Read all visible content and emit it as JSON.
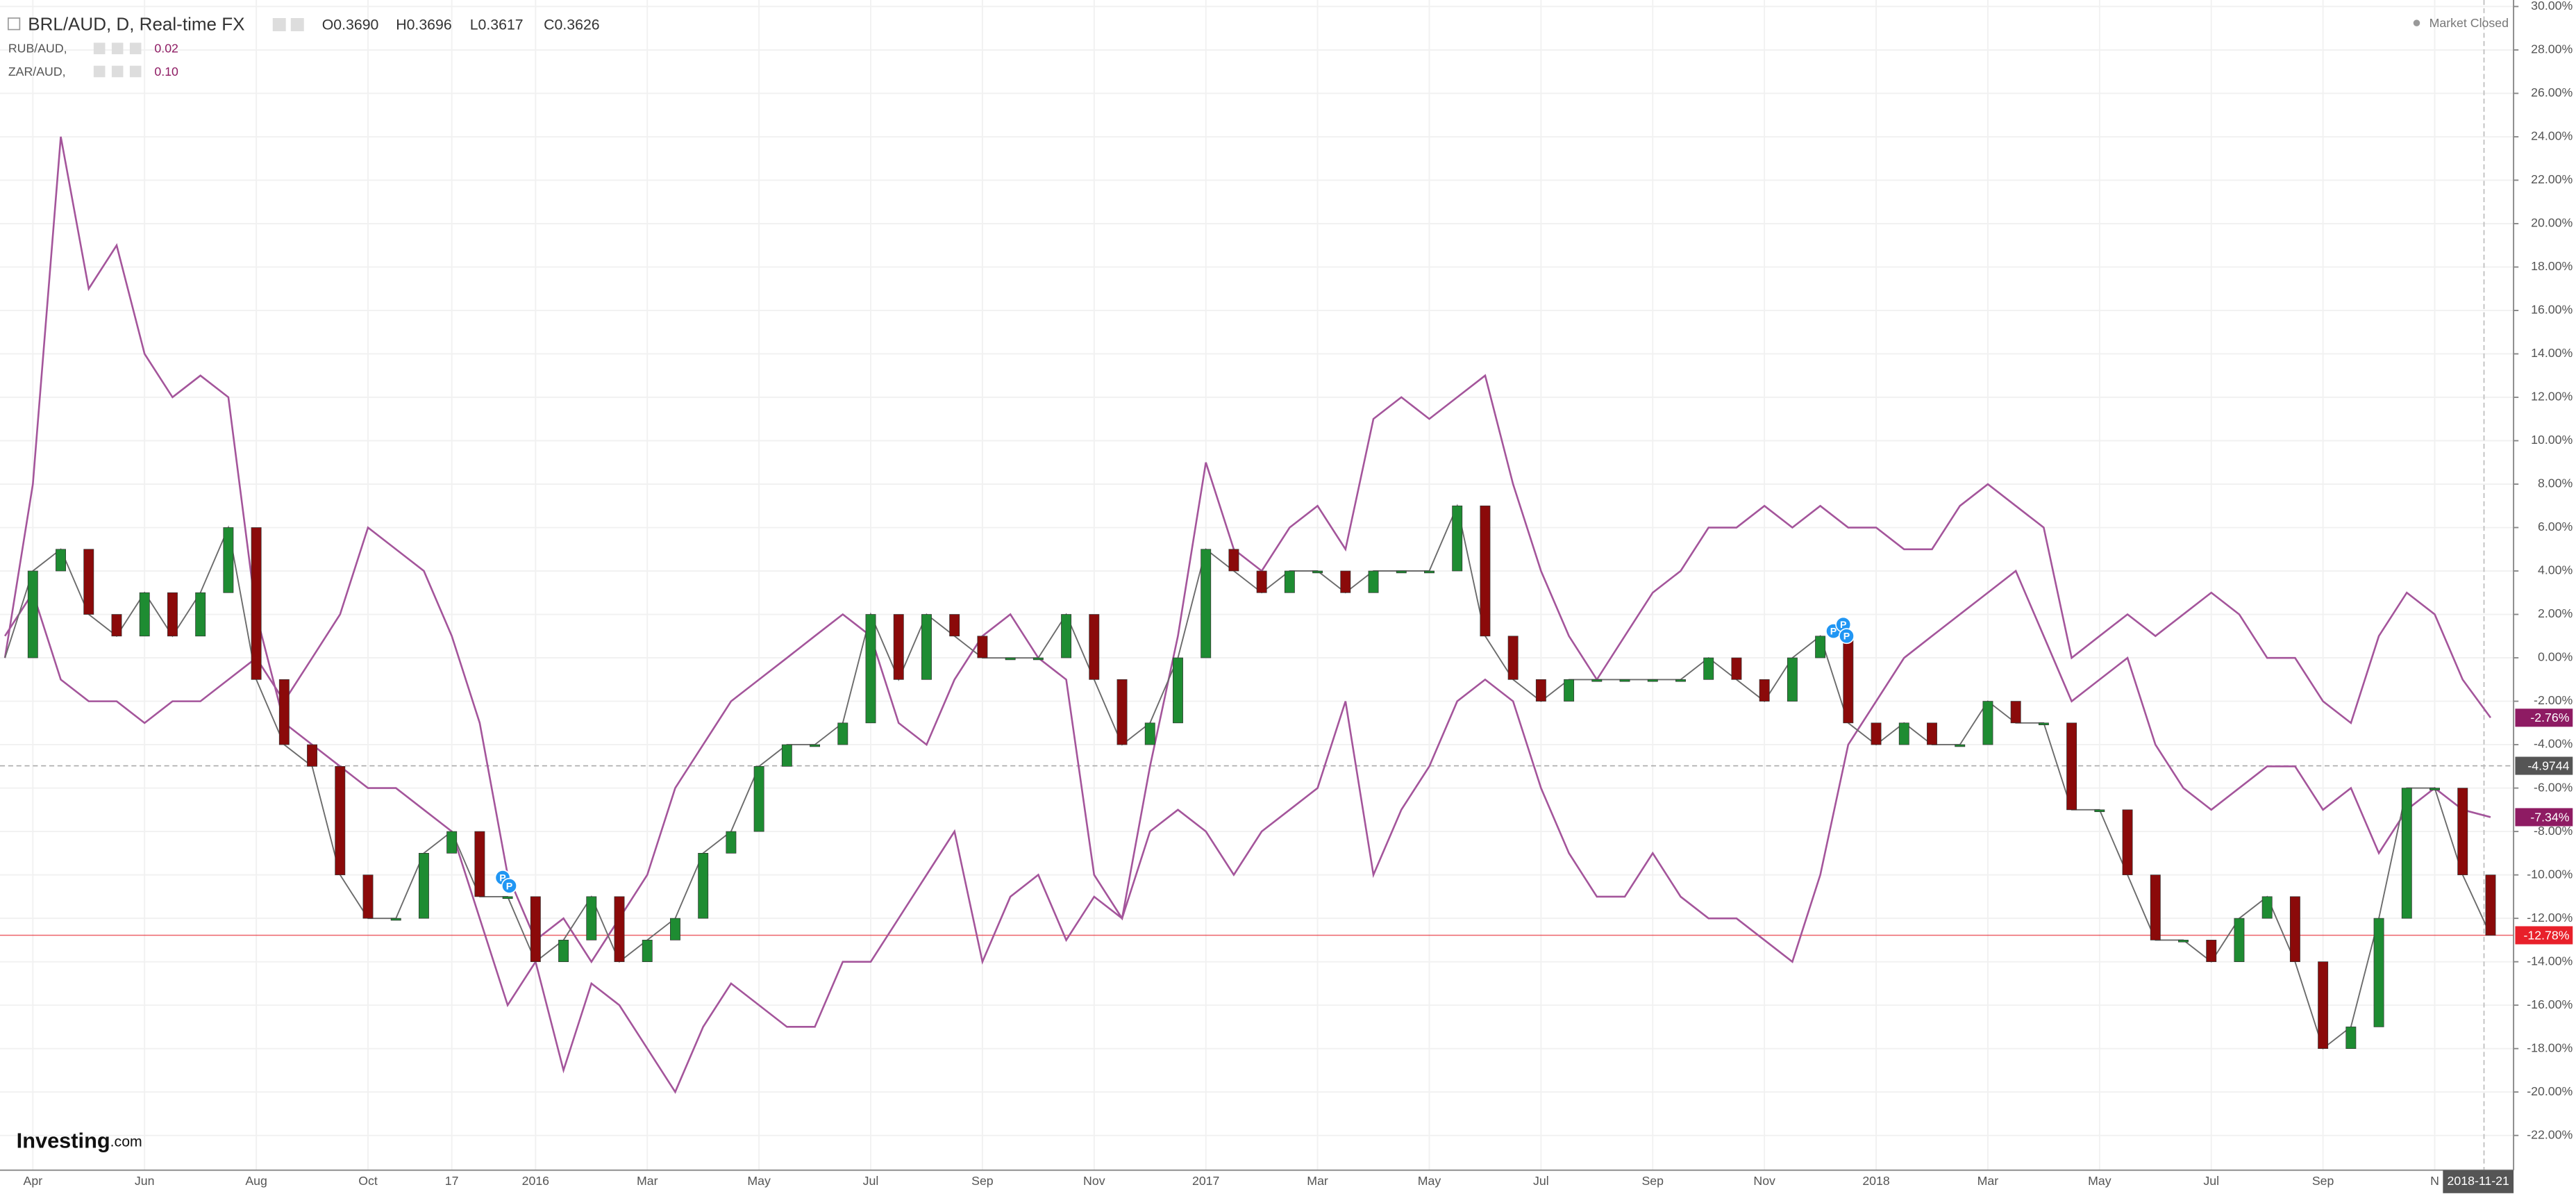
{
  "chart_data": {
    "type": "line",
    "title": "BRL/AUD, D, Real-time FX",
    "ohlc": [
      {
        "name": "O",
        "value": "0.3690"
      },
      {
        "name": "H",
        "value": "0.3696"
      },
      {
        "name": "L",
        "value": "0.3617"
      },
      {
        "name": "C",
        "value": "0.3626"
      }
    ],
    "status": "Market Closed",
    "logo": {
      "brand": "Investing",
      "suffix": ".com"
    },
    "date_label": "2018-11-21",
    "event_markers": [
      "P",
      "P",
      "P",
      "P",
      "P"
    ],
    "crosshair": -4.9744,
    "categories": [
      null,
      "Apr",
      null,
      null,
      null,
      "Jun",
      null,
      null,
      null,
      "Aug",
      null,
      null,
      null,
      "Oct",
      null,
      null,
      "17",
      null,
      null,
      "2016",
      null,
      null,
      null,
      "Mar",
      null,
      null,
      null,
      "May",
      null,
      null,
      null,
      "Jul",
      null,
      null,
      null,
      "Sep",
      null,
      null,
      null,
      "Nov",
      null,
      null,
      null,
      "2017",
      null,
      null,
      null,
      "Mar",
      null,
      null,
      null,
      "May",
      null,
      null,
      null,
      "Jul",
      null,
      null,
      null,
      "Sep",
      null,
      null,
      null,
      "Nov",
      null,
      null,
      null,
      "2018",
      null,
      null,
      null,
      "Mar",
      null,
      null,
      null,
      "May",
      null,
      null,
      null,
      "Jul",
      null,
      null,
      null,
      "Sep",
      null,
      null,
      null,
      "N",
      null,
      null
    ],
    "series": [
      {
        "name": "BRL/AUD",
        "color": "#6b6b6b",
        "up_color": "#1e8c32",
        "down_color": "#8b0a0a",
        "last_color": "#e8202a",
        "last_label": "-12.78%",
        "values": [
          0,
          4,
          5,
          2,
          1,
          3,
          1,
          3,
          6,
          -1,
          -4,
          -5,
          -10,
          -12,
          -12,
          -9,
          -8,
          -11,
          -11,
          -14,
          -13,
          -11,
          -14,
          -13,
          -12,
          -9,
          -8,
          -5,
          -4,
          -4,
          -3,
          2,
          -1,
          2,
          1,
          0,
          0,
          0,
          2,
          -1,
          -4,
          -3,
          0,
          5,
          4,
          3,
          4,
          4,
          3,
          4,
          4,
          4,
          7,
          1,
          -1,
          -2,
          -1,
          -1,
          -1,
          -1,
          -1,
          0,
          -1,
          -2,
          0,
          1,
          -3,
          -4,
          -3,
          -4,
          -4,
          -2,
          -3,
          -3,
          -7,
          -7,
          -10,
          -13,
          -13,
          -14,
          -12,
          -11,
          -14,
          -18,
          -17,
          -12,
          -6,
          -6,
          -10,
          -12.78
        ]
      },
      {
        "name": "RUB/AUD,",
        "color": "#a4559b",
        "legend_value": "0.02",
        "last_color": "#8e1b63",
        "last_label": "-2.76%",
        "values": [
          0,
          8,
          24,
          17,
          19,
          14,
          12,
          13,
          12,
          2,
          -3,
          -4,
          -5,
          -6,
          -6,
          -7,
          -8,
          -12,
          -16,
          -14,
          -19,
          -15,
          -16,
          -18,
          -20,
          -17,
          -15,
          -16,
          -17,
          -17,
          -14,
          -14,
          -12,
          -10,
          -8,
          -14,
          -11,
          -10,
          -13,
          -11,
          -12,
          -5,
          1,
          9,
          5,
          4,
          6,
          7,
          5,
          11,
          12,
          11,
          12,
          13,
          8,
          4,
          1,
          -1,
          1,
          3,
          4,
          6,
          6,
          7,
          6,
          7,
          6,
          6,
          5,
          5,
          7,
          8,
          7,
          6,
          0,
          1,
          2,
          1,
          2,
          3,
          2,
          0,
          0,
          -2,
          -3,
          1,
          3,
          2,
          -1,
          -2.76
        ]
      },
      {
        "name": "ZAR/AUD,",
        "color": "#a4559b",
        "legend_value": "0.10",
        "last_color": "#8e1b63",
        "last_label": "-7.34%",
        "values": [
          1,
          3,
          -1,
          -2,
          -2,
          -3,
          -2,
          -2,
          -1,
          0,
          -2,
          0,
          2,
          6,
          5,
          4,
          1,
          -3,
          -10,
          -13,
          -12,
          -14,
          -12,
          -10,
          -6,
          -4,
          -2,
          -1,
          0,
          1,
          2,
          1,
          -3,
          -4,
          -1,
          1,
          2,
          0,
          -1,
          -10,
          -12,
          -8,
          -7,
          -8,
          -10,
          -8,
          -7,
          -6,
          -2,
          -10,
          -7,
          -5,
          -2,
          -1,
          -2,
          -6,
          -9,
          -11,
          -11,
          -9,
          -11,
          -12,
          -12,
          -13,
          -14,
          -10,
          -4,
          -2,
          0,
          1,
          2,
          3,
          4,
          1,
          -2,
          -1,
          0,
          -4,
          -6,
          -7,
          -6,
          -5,
          -5,
          -7,
          -6,
          -9,
          -7,
          -6,
          -7,
          -7.34
        ]
      }
    ],
    "ylim": [
      -23.6,
      30.3
    ],
    "yticks": [
      {
        "value": 30,
        "label": "30.00%"
      },
      {
        "value": 28,
        "label": "28.00%"
      },
      {
        "value": 26,
        "label": "26.00%"
      },
      {
        "value": 24,
        "label": "24.00%"
      },
      {
        "value": 22,
        "label": "22.00%"
      },
      {
        "value": 20,
        "label": "20.00%"
      },
      {
        "value": 18,
        "label": "18.00%"
      },
      {
        "value": 16,
        "label": "16.00%"
      },
      {
        "value": 14,
        "label": "14.00%"
      },
      {
        "value": 12,
        "label": "12.00%"
      },
      {
        "value": 10,
        "label": "10.00%"
      },
      {
        "value": 8,
        "label": "8.00%"
      },
      {
        "value": 6,
        "label": "6.00%"
      },
      {
        "value": 4,
        "label": "4.00%"
      },
      {
        "value": 2,
        "label": "2.00%"
      },
      {
        "value": 0,
        "label": "0.00%"
      },
      {
        "value": -2,
        "label": "-2.00%"
      },
      {
        "value": -4,
        "label": "-4.00%"
      },
      {
        "value": -6,
        "label": "-6.00%"
      },
      {
        "value": -8,
        "label": "-8.00%"
      },
      {
        "value": -10,
        "label": "-10.00%"
      },
      {
        "value": -12,
        "label": "-12.00%"
      },
      {
        "value": -14,
        "label": "-14.00%"
      },
      {
        "value": -16,
        "label": "-16.00%"
      },
      {
        "value": -18,
        "label": "-18.00%"
      },
      {
        "value": -20,
        "label": "-20.00%"
      },
      {
        "value": -22,
        "label": "-22.00%"
      }
    ],
    "grid": true
  }
}
